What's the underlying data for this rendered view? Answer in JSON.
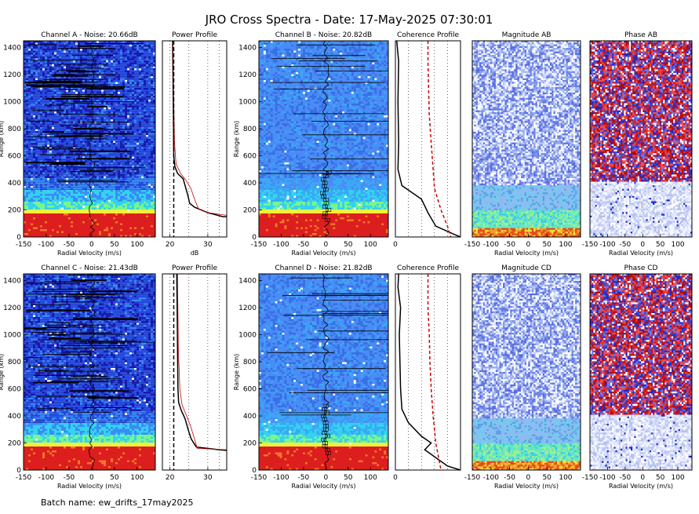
{
  "figure": {
    "title": "JRO Cross Spectra  -  Date: 17-May-2025 07:30:01",
    "batch_label": "Batch name: ew_drifts_17may2025"
  },
  "chart_data": [
    {
      "type": "heatmap",
      "title": "Channel A - Noise: 20.66dB",
      "xlabel": "Radial Velocity (m/s)",
      "ylabel": "Range (km)",
      "xlim": [
        -150,
        140
      ],
      "ylim": [
        0,
        1450
      ],
      "xticks": [
        -150,
        -100,
        -50,
        0,
        50,
        100
      ],
      "yticks": [
        0,
        200,
        400,
        600,
        800,
        1000,
        1200,
        1400
      ],
      "colormap": "jet",
      "palette": [
        "#1c1cb4",
        "#2a50e6",
        "#3a8cf5",
        "#34d2f0",
        "#7af58c",
        "#f0f03c",
        "#f07828",
        "#dc1e1e"
      ]
    },
    {
      "type": "line",
      "title": "Power Profile",
      "xlabel": "dB",
      "xlim": [
        18,
        35
      ],
      "xticks": [
        20,
        30
      ],
      "series": [
        {
          "color": "#000000",
          "x": [
            20.7,
            20.8,
            20.9,
            21.0,
            21.3,
            22.0,
            23.5,
            24.2,
            24.8,
            25.2,
            26.5,
            30.0,
            34.0,
            35.0
          ],
          "y": [
            1450,
            1200,
            900,
            600,
            520,
            470,
            430,
            360,
            300,
            250,
            220,
            180,
            150,
            150
          ]
        },
        {
          "color": "#cc0000",
          "x": [
            20.8,
            21.0,
            21.2,
            21.6,
            22.8,
            24.2,
            25.5,
            26.5,
            27.5,
            30.0,
            35.0
          ],
          "y": [
            1450,
            1000,
            700,
            540,
            470,
            420,
            360,
            280,
            210,
            180,
            160
          ]
        }
      ]
    },
    {
      "type": "heatmap",
      "title": "Channel B - Noise: 20.82dB",
      "xlabel": "Radial Velocity (m/s)",
      "ylabel": "Range (km)",
      "xlim": [
        -150,
        140
      ],
      "ylim": [
        0,
        1450
      ],
      "xticks": [
        -150,
        -100,
        -50,
        0,
        50,
        100
      ],
      "yticks": [
        0,
        200,
        400,
        600,
        800,
        1000,
        1200,
        1400
      ],
      "colormap": "jet",
      "palette": [
        "#3a6ee6",
        "#4a8cf5",
        "#3aa8f5",
        "#34d2f0",
        "#7af58c",
        "#f0f03c",
        "#f07828",
        "#dc1e1e"
      ]
    },
    {
      "type": "line",
      "title": "Coherence Profile",
      "xlim": [
        0,
        1
      ],
      "xticks": [
        0
      ],
      "series": [
        {
          "color": "#000000",
          "x": [
            0.02,
            0.03,
            0.05,
            0.04,
            0.05,
            0.04,
            0.08,
            0.1,
            0.22,
            0.4,
            0.5,
            0.62,
            0.9,
            1.0
          ],
          "y": [
            1450,
            1400,
            1300,
            1000,
            700,
            500,
            420,
            380,
            340,
            280,
            180,
            80,
            20,
            0
          ]
        },
        {
          "color": "#cc0000",
          "x": [
            0.5,
            0.5,
            0.51,
            0.52,
            0.55,
            0.58,
            0.6,
            0.7,
            0.8,
            0.85
          ],
          "y": [
            1450,
            1300,
            1100,
            900,
            700,
            500,
            360,
            200,
            80,
            0
          ]
        }
      ]
    },
    {
      "type": "heatmap",
      "title": "Magnitude AB",
      "xlabel": "Radial Velocity (m/s)",
      "xlim": [
        -150,
        140
      ],
      "xticks": [
        -150,
        -100,
        -50,
        0,
        50,
        100
      ]
    },
    {
      "type": "heatmap",
      "title": "Phase AB",
      "xlabel": "Radial Velocity (m/s)",
      "xlim": [
        -150,
        140
      ],
      "xticks": [
        -150,
        -100,
        -50,
        0,
        50,
        100
      ]
    },
    {
      "type": "heatmap",
      "title": "Channel C - Noise: 21.43dB",
      "xlabel": "Radial Velocity (m/s)",
      "ylabel": "Range (km)",
      "xlim": [
        -150,
        140
      ],
      "ylim": [
        0,
        1450
      ],
      "xticks": [
        -150,
        -100,
        -50,
        0,
        50,
        100
      ],
      "yticks": [
        0,
        200,
        400,
        600,
        800,
        1000,
        1200,
        1400
      ],
      "colormap": "jet",
      "palette": [
        "#1c1cb4",
        "#2a50e6",
        "#3a8cf5",
        "#34d2f0",
        "#7af58c",
        "#f0f03c",
        "#f07828",
        "#dc1e1e"
      ]
    },
    {
      "type": "line",
      "title": "Power Profile",
      "xlim": [
        18,
        35
      ],
      "xticks": [
        20,
        30
      ],
      "series": [
        {
          "color": "#000000",
          "x": [
            21.8,
            21.9,
            22.0,
            22.1,
            22.3,
            23.0,
            24.0,
            24.8,
            25.6,
            26.5,
            27.0,
            33.0,
            35.0
          ],
          "y": [
            1450,
            1200,
            900,
            600,
            500,
            440,
            380,
            300,
            230,
            190,
            170,
            150,
            145
          ]
        },
        {
          "color": "#cc0000",
          "x": [
            22.0,
            22.2,
            22.6,
            23.2,
            24.4,
            25.5,
            26.6,
            27.2,
            35.0
          ],
          "y": [
            1450,
            900,
            600,
            480,
            400,
            320,
            220,
            160,
            150
          ]
        }
      ]
    },
    {
      "type": "heatmap",
      "title": "Channel D - Noise: 21.82dB",
      "xlabel": "Radial Velocity (m/s)",
      "ylabel": "Range (km)",
      "xlim": [
        -150,
        140
      ],
      "ylim": [
        0,
        1450
      ],
      "xticks": [
        -150,
        -100,
        -50,
        0,
        50,
        100
      ],
      "yticks": [
        0,
        200,
        400,
        600,
        800,
        1000,
        1200,
        1400
      ],
      "colormap": "jet",
      "palette": [
        "#3a6ee6",
        "#4a8cf5",
        "#3aa8f5",
        "#34d2f0",
        "#7af58c",
        "#f0f03c",
        "#f07828",
        "#dc1e1e"
      ]
    },
    {
      "type": "line",
      "title": "Coherence Profile",
      "xlim": [
        0,
        1
      ],
      "xticks": [
        0
      ],
      "series": [
        {
          "color": "#000000",
          "x": [
            0.05,
            0.04,
            0.08,
            0.06,
            0.07,
            0.08,
            0.1,
            0.2,
            0.4,
            0.55,
            0.45,
            0.8,
            1.0
          ],
          "y": [
            1450,
            1350,
            1200,
            1000,
            800,
            600,
            450,
            350,
            250,
            200,
            150,
            30,
            0
          ]
        },
        {
          "color": "#cc0000",
          "x": [
            0.5,
            0.5,
            0.52,
            0.53,
            0.55,
            0.58,
            0.62,
            0.7
          ],
          "y": [
            1450,
            1200,
            1000,
            800,
            600,
            400,
            200,
            0
          ]
        }
      ]
    },
    {
      "type": "heatmap",
      "title": "Magnitude CD",
      "xlabel": "Radial Velocity (m/s)",
      "xlim": [
        -150,
        140
      ],
      "xticks": [
        -150,
        -100,
        -50,
        0,
        50,
        100
      ]
    },
    {
      "type": "heatmap",
      "title": "Phase CD",
      "xlabel": "Radial Velocity (m/s)",
      "xlim": [
        -150,
        140
      ],
      "xticks": [
        -150,
        -100,
        -50,
        0,
        50,
        100
      ]
    }
  ]
}
